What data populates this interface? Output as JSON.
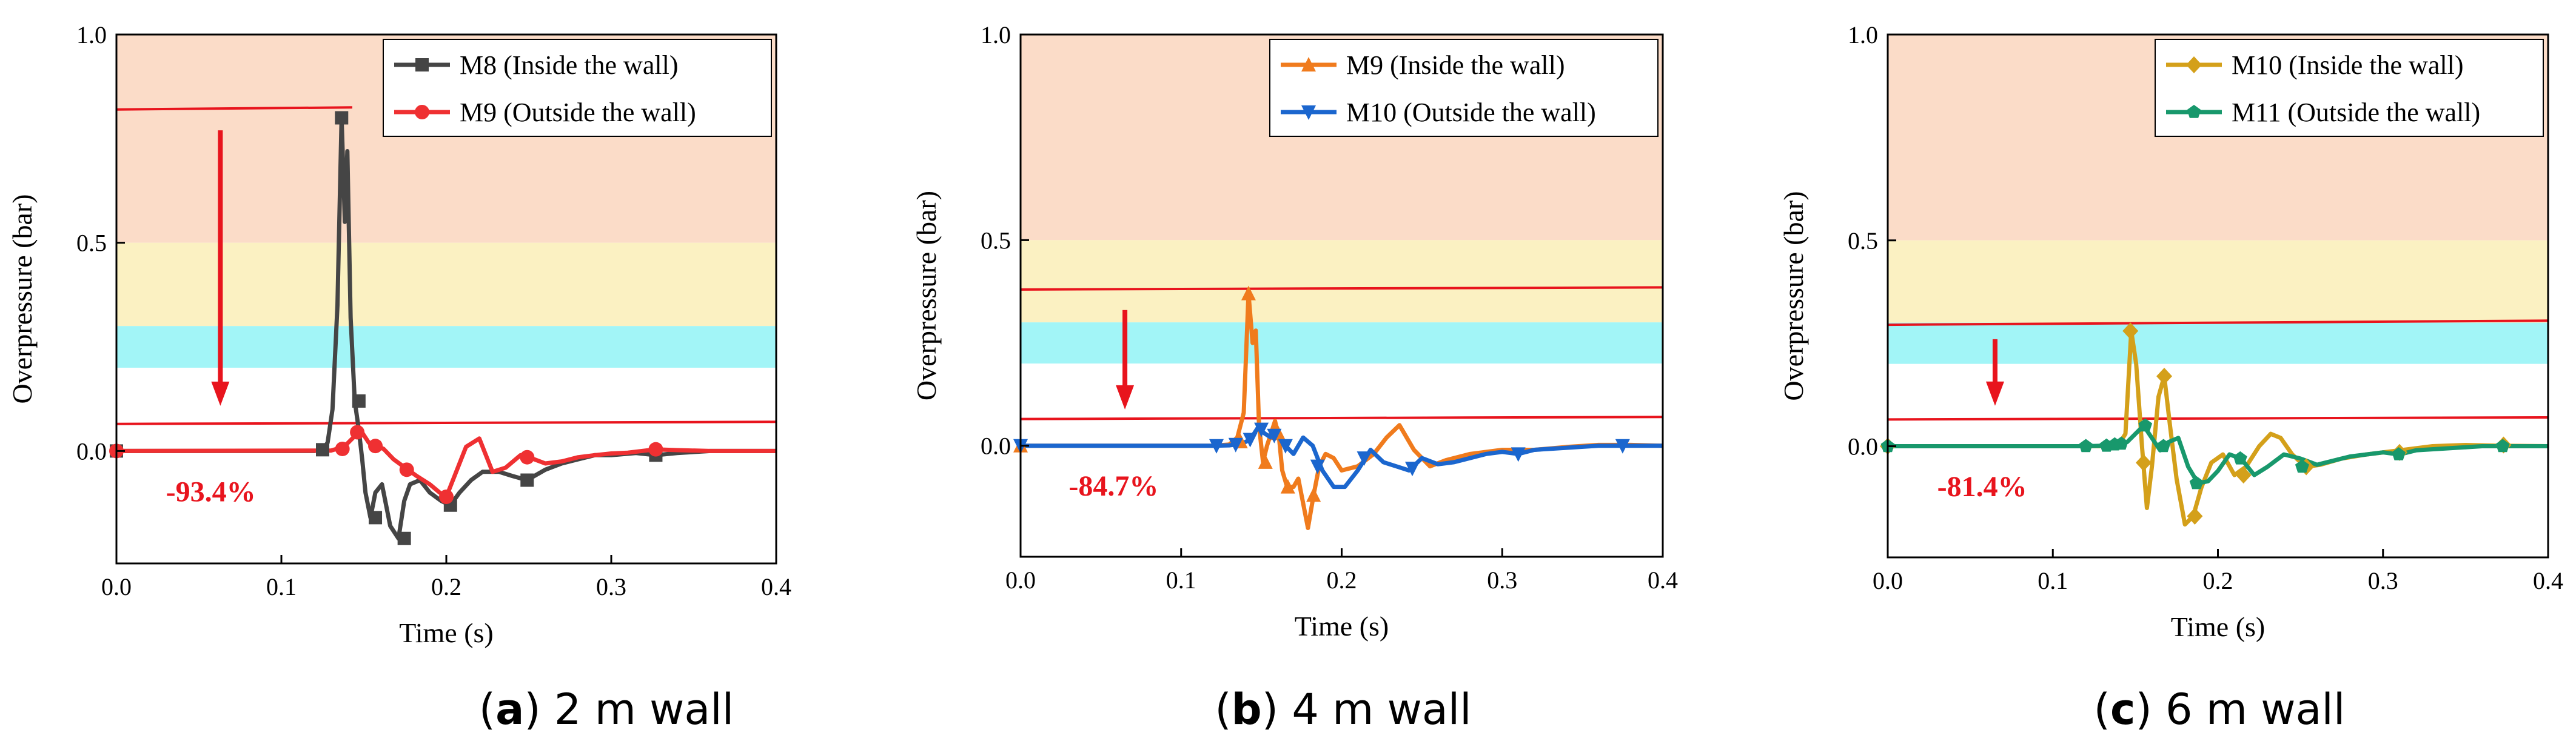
{
  "colors": {
    "zone_high": "#fbdcc8",
    "zone_mid": "#fbf1c2",
    "zone_low": "#a2f5f7",
    "threshold_line": "#e8141d",
    "reduction_text": "#e8141d",
    "axis": "#000000"
  },
  "chart_data": [
    {
      "type": "line",
      "caption_letter": "a",
      "caption_rest": " 2 m wall",
      "xlabel": "Time (s)",
      "ylabel": "Overpressure (bar)",
      "xlim": [
        0,
        0.4
      ],
      "ylim": [
        -0.27,
        1.0
      ],
      "x_ticks": [
        0.0,
        0.1,
        0.2,
        0.3,
        0.4
      ],
      "x_tick_labels": [
        "0.0",
        "0.1",
        "0.2",
        "0.3",
        "0.4"
      ],
      "y_ticks": [
        0.0,
        0.5,
        1.0
      ],
      "y_tick_labels": [
        "0.0",
        "0.5",
        "1.0"
      ],
      "bands": [
        {
          "from": 0.5,
          "to": 1.0,
          "color": "#fbdcc8"
        },
        {
          "from": 0.3,
          "to": 0.5,
          "color": "#fbf1c2"
        },
        {
          "from": 0.2,
          "to": 0.3,
          "color": "#a2f5f7"
        }
      ],
      "threshold_lines": [
        {
          "x1": 0,
          "y1": 0.82,
          "x2": 0.143,
          "y2": 0.825
        },
        {
          "x1": 0,
          "y1": 0.065,
          "x2": 0.4,
          "y2": 0.07
        }
      ],
      "arrow": {
        "x": 0.063,
        "y_from": 0.77,
        "y_to": 0.12
      },
      "reduction_label": "-93.4%",
      "reduction_pos": [
        0.03,
        -0.095
      ],
      "legend_position": "top-right",
      "series": [
        {
          "name": "M8 (Inside the wall)",
          "color": "#454545",
          "marker": "square",
          "x": [
            0,
            0.12,
            0.125,
            0.128,
            0.131,
            0.134,
            0.1365,
            0.1385,
            0.14,
            0.142,
            0.1445,
            0.147,
            0.149,
            0.151,
            0.154,
            0.157,
            0.161,
            0.166,
            0.171,
            0.1745,
            0.178,
            0.184,
            0.19,
            0.197,
            0.2025,
            0.208,
            0.215,
            0.222,
            0.232,
            0.24,
            0.249,
            0.26,
            0.27,
            0.28,
            0.29,
            0.3,
            0.315,
            0.327,
            0.34,
            0.36,
            0.38,
            0.4
          ],
          "y": [
            0,
            0,
            0.003,
            0.02,
            0.1,
            0.35,
            0.8,
            0.55,
            0.72,
            0.32,
            0.12,
            0.05,
            -0.02,
            -0.1,
            -0.16,
            -0.1,
            -0.08,
            -0.18,
            -0.21,
            -0.12,
            -0.08,
            -0.07,
            -0.1,
            -0.12,
            -0.13,
            -0.1,
            -0.07,
            -0.05,
            -0.05,
            -0.06,
            -0.07,
            -0.045,
            -0.03,
            -0.02,
            -0.01,
            -0.01,
            -0.005,
            -0.01,
            -0.005,
            0,
            0,
            0
          ],
          "marker_x": [
            0,
            0.125,
            0.1365,
            0.147,
            0.157,
            0.1745,
            0.2025,
            0.249,
            0.327
          ],
          "marker_y": [
            0,
            0.003,
            0.8,
            0.12,
            -0.16,
            -0.21,
            -0.13,
            -0.07,
            -0.01
          ]
        },
        {
          "name": "M9 (Outside the wall)",
          "color": "#ef3032",
          "marker": "circle",
          "x": [
            0,
            0.13,
            0.138,
            0.143,
            0.148,
            0.153,
            0.158,
            0.162,
            0.168,
            0.175,
            0.182,
            0.19,
            0.196,
            0.2,
            0.205,
            0.212,
            0.22,
            0.228,
            0.236,
            0.245,
            0.25,
            0.26,
            0.27,
            0.28,
            0.29,
            0.3,
            0.31,
            0.327,
            0.34,
            0.36,
            0.38,
            0.4
          ],
          "y": [
            0,
            0.001,
            0.01,
            0.03,
            0.05,
            0.02,
            0.012,
            0.005,
            -0.02,
            -0.04,
            -0.06,
            -0.08,
            -0.1,
            -0.11,
            -0.06,
            0.01,
            0.03,
            -0.05,
            -0.04,
            -0.01,
            -0.015,
            -0.03,
            -0.025,
            -0.015,
            -0.01,
            -0.006,
            -0.004,
            0.004,
            0.002,
            0,
            0,
            0
          ],
          "marker_x": [
            0,
            0.137,
            0.146,
            0.157,
            0.176,
            0.2,
            0.249,
            0.327
          ],
          "marker_y": [
            0,
            0.005,
            0.045,
            0.012,
            -0.045,
            -0.11,
            -0.015,
            0.004
          ]
        }
      ]
    },
    {
      "type": "line",
      "caption_letter": "b",
      "caption_rest": " 4 m wall",
      "xlabel": "Time (s)",
      "ylabel": "Overpressure (bar)",
      "xlim": [
        0,
        0.4
      ],
      "ylim": [
        -0.27,
        1.0
      ],
      "x_ticks": [
        0.0,
        0.1,
        0.2,
        0.3,
        0.4
      ],
      "x_tick_labels": [
        "0.0",
        "0.1",
        "0.2",
        "0.3",
        "0.4"
      ],
      "y_ticks": [
        0.0,
        0.5,
        1.0
      ],
      "y_tick_labels": [
        "0.0",
        "0.5",
        "1.0"
      ],
      "bands": [
        {
          "from": 0.5,
          "to": 1.0,
          "color": "#fbdcc8"
        },
        {
          "from": 0.3,
          "to": 0.5,
          "color": "#fbf1c2"
        },
        {
          "from": 0.2,
          "to": 0.3,
          "color": "#a2f5f7"
        }
      ],
      "threshold_lines": [
        {
          "x1": 0,
          "y1": 0.38,
          "x2": 0.4,
          "y2": 0.385
        },
        {
          "x1": 0,
          "y1": 0.065,
          "x2": 0.4,
          "y2": 0.07
        }
      ],
      "arrow": {
        "x": 0.065,
        "y_from": 0.33,
        "y_to": 0.1
      },
      "reduction_label": "-84.7%",
      "reduction_pos": [
        0.03,
        -0.095
      ],
      "legend_position": "top-right",
      "series": [
        {
          "name": "M9 (Inside the wall)",
          "color": "#f07b1d",
          "marker": "triangle-up",
          "x": [
            0,
            0.12,
            0.13,
            0.135,
            0.139,
            0.142,
            0.1445,
            0.1465,
            0.1485,
            0.151,
            0.1535,
            0.156,
            0.1585,
            0.161,
            0.163,
            0.166,
            0.17,
            0.173,
            0.1765,
            0.179,
            0.1825,
            0.186,
            0.19,
            0.195,
            0.2,
            0.21,
            0.22,
            0.228,
            0.236,
            0.245,
            0.255,
            0.265,
            0.28,
            0.3,
            0.32,
            0.34,
            0.36,
            0.38,
            0.4
          ],
          "y": [
            0,
            0,
            0.003,
            0.02,
            0.08,
            0.37,
            0.25,
            0.28,
            0.05,
            -0.04,
            0.0,
            0.03,
            0.06,
            0.02,
            -0.06,
            -0.1,
            -0.1,
            -0.08,
            -0.15,
            -0.2,
            -0.12,
            -0.05,
            -0.02,
            -0.03,
            -0.06,
            -0.05,
            -0.02,
            0.02,
            0.05,
            -0.01,
            -0.05,
            -0.035,
            -0.02,
            -0.01,
            -0.01,
            -0.003,
            0.002,
            0.002,
            0
          ],
          "marker_x": [
            0,
            0.137,
            0.142,
            0.1525,
            0.1605,
            0.1665,
            0.1825
          ],
          "marker_y": [
            0,
            0.01,
            0.37,
            -0.04,
            0.03,
            -0.1,
            -0.12
          ]
        },
        {
          "name": "M10 (Outside the wall)",
          "color": "#1b66ce",
          "marker": "triangle-down",
          "x": [
            0,
            0.12,
            0.13,
            0.138,
            0.143,
            0.148,
            0.152,
            0.156,
            0.16,
            0.165,
            0.17,
            0.176,
            0.182,
            0.188,
            0.195,
            0.202,
            0.21,
            0.218,
            0.226,
            0.234,
            0.242,
            0.25,
            0.26,
            0.27,
            0.28,
            0.29,
            0.3,
            0.31,
            0.32,
            0.34,
            0.36,
            0.38,
            0.4
          ],
          "y": [
            0,
            0,
            0.001,
            0.005,
            0.015,
            0.045,
            0.03,
            0.02,
            0.025,
            0.0,
            -0.02,
            0.02,
            0.0,
            -0.06,
            -0.1,
            -0.1,
            -0.06,
            -0.01,
            -0.04,
            -0.05,
            -0.06,
            -0.03,
            -0.045,
            -0.04,
            -0.03,
            -0.02,
            -0.015,
            -0.02,
            -0.01,
            -0.005,
            0,
            0,
            0
          ],
          "marker_x": [
            0,
            0.122,
            0.134,
            0.143,
            0.15,
            0.158,
            0.165,
            0.185,
            0.214,
            0.244,
            0.31,
            0.375
          ],
          "marker_y": [
            0,
            0,
            0.003,
            0.015,
            0.04,
            0.025,
            0.0,
            -0.05,
            -0.03,
            -0.055,
            -0.02,
            0
          ]
        }
      ]
    },
    {
      "type": "line",
      "caption_letter": "c",
      "caption_rest": " 6 m wall",
      "xlabel": "Time (s)",
      "ylabel": "Overpressure (bar)",
      "xlim": [
        0,
        0.4
      ],
      "ylim": [
        -0.27,
        1.0
      ],
      "x_ticks": [
        0.0,
        0.1,
        0.2,
        0.3,
        0.4
      ],
      "x_tick_labels": [
        "0.0",
        "0.1",
        "0.2",
        "0.3",
        "0.4"
      ],
      "y_ticks": [
        0.0,
        0.5,
        1.0
      ],
      "y_tick_labels": [
        "0.0",
        "0.5",
        "1.0"
      ],
      "bands": [
        {
          "from": 0.5,
          "to": 1.0,
          "color": "#fbdcc8"
        },
        {
          "from": 0.3,
          "to": 0.5,
          "color": "#fbf1c2"
        },
        {
          "from": 0.2,
          "to": 0.3,
          "color": "#a2f5f7"
        }
      ],
      "threshold_lines": [
        {
          "x1": 0,
          "y1": 0.295,
          "x2": 0.4,
          "y2": 0.305
        },
        {
          "x1": 0,
          "y1": 0.065,
          "x2": 0.4,
          "y2": 0.07
        }
      ],
      "arrow": {
        "x": 0.065,
        "y_from": 0.26,
        "y_to": 0.11
      },
      "reduction_label": "-81.4%",
      "reduction_pos": [
        0.03,
        -0.095
      ],
      "legend_position": "top-right",
      "series": [
        {
          "name": "M10 (Inside the wall)",
          "color": "#d4a01a",
          "marker": "diamond",
          "x": [
            0,
            0.13,
            0.14,
            0.144,
            0.1475,
            0.1505,
            0.154,
            0.157,
            0.16,
            0.164,
            0.1675,
            0.171,
            0.175,
            0.18,
            0.185,
            0.19,
            0.196,
            0.203,
            0.21,
            0.217,
            0.225,
            0.232,
            0.238,
            0.245,
            0.253,
            0.262,
            0.275,
            0.29,
            0.31,
            0.33,
            0.35,
            0.37,
            0.4
          ],
          "y": [
            0,
            0,
            0.005,
            0.03,
            0.28,
            0.2,
            0.0,
            -0.15,
            -0.05,
            0.12,
            0.17,
            0.05,
            -0.08,
            -0.19,
            -0.17,
            -0.1,
            -0.04,
            -0.02,
            -0.07,
            -0.05,
            0.0,
            0.03,
            0.02,
            -0.02,
            -0.05,
            -0.045,
            -0.03,
            -0.02,
            -0.01,
            0,
            0.003,
            0.001,
            0
          ],
          "marker_x": [
            0,
            0.147,
            0.155,
            0.1675,
            0.186,
            0.2155,
            0.2535,
            0.31,
            0.373
          ],
          "marker_y": [
            0,
            0.28,
            -0.04,
            0.17,
            -0.17,
            -0.07,
            -0.05,
            -0.015,
            0.003
          ]
        },
        {
          "name": "M11 (Outside the wall)",
          "color": "#18986c",
          "marker": "pentagon",
          "x": [
            0,
            0.12,
            0.13,
            0.138,
            0.145,
            0.15,
            0.155,
            0.16,
            0.165,
            0.17,
            0.176,
            0.182,
            0.188,
            0.194,
            0.2,
            0.207,
            0.214,
            0.222,
            0.23,
            0.24,
            0.25,
            0.26,
            0.27,
            0.28,
            0.29,
            0.3,
            0.31,
            0.32,
            0.34,
            0.36,
            0.38,
            0.4
          ],
          "y": [
            0,
            0,
            0.001,
            0.004,
            0.01,
            0.03,
            0.05,
            0.02,
            -0.01,
            0.01,
            0.02,
            -0.05,
            -0.09,
            -0.085,
            -0.06,
            -0.02,
            -0.03,
            -0.07,
            -0.05,
            -0.02,
            -0.03,
            -0.045,
            -0.035,
            -0.025,
            -0.02,
            -0.015,
            -0.02,
            -0.01,
            -0.005,
            0,
            0,
            0
          ],
          "marker_x": [
            0,
            0.12,
            0.1325,
            0.1375,
            0.1415,
            0.156,
            0.167,
            0.187,
            0.2135,
            0.251,
            0.3095,
            0.3725
          ],
          "marker_y": [
            0,
            0,
            0.001,
            0.004,
            0.006,
            0.05,
            0.0,
            -0.09,
            -0.03,
            -0.05,
            -0.02,
            0
          ]
        }
      ]
    }
  ]
}
